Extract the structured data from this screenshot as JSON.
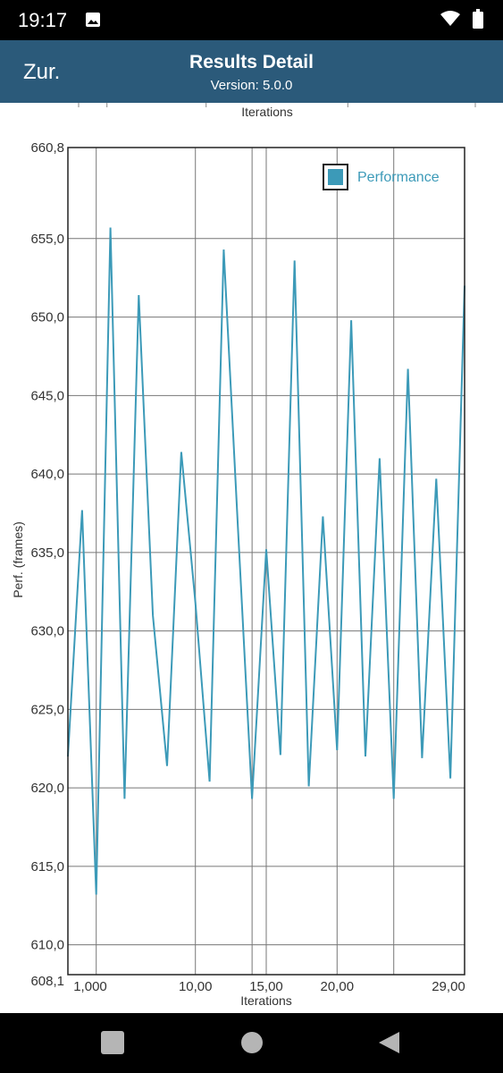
{
  "status": {
    "time": "19:17",
    "icons": [
      "image-icon",
      "wifi-icon",
      "battery-icon"
    ]
  },
  "header": {
    "back_label": "Zur.",
    "title": "Results Detail",
    "subtitle": "Version: 5.0.0"
  },
  "top_axis_label": "Iterations",
  "chart_data": {
    "type": "line",
    "xlabel": "Iterations",
    "ylabel": "Perf. (frames)",
    "xlim": [
      1,
      29
    ],
    "ylim": [
      608.1,
      660.8
    ],
    "x_ticks": [
      "1,000",
      "10,00",
      "15,00",
      "20,00",
      "29,00"
    ],
    "y_ticks": [
      "660,8",
      "655,0",
      "650,0",
      "645,0",
      "640,0",
      "635,0",
      "630,0",
      "625,0",
      "620,0",
      "615,0",
      "610,0",
      "608,1"
    ],
    "legend": "top-right",
    "grid": true,
    "series": [
      {
        "name": "Performance",
        "color": "#3c9ab8",
        "x": [
          1,
          2,
          3,
          4,
          5,
          6,
          7,
          8,
          9,
          10,
          11,
          12,
          13,
          14,
          15,
          16,
          17,
          18,
          19,
          20,
          21,
          22,
          23,
          24,
          25,
          26,
          27,
          28,
          29,
          29.1
        ],
        "values": [
          622,
          637.7,
          613.2,
          655.7,
          619.3,
          651.4,
          631,
          621.4,
          641.4,
          631.8,
          620.4,
          654.3,
          636.6,
          619.3,
          635.2,
          622.1,
          653.6,
          620.1,
          637.3,
          622.4,
          649.8,
          622,
          641,
          619.3,
          646.7,
          621.9,
          639.7,
          620.6,
          652,
          652
        ]
      }
    ]
  }
}
